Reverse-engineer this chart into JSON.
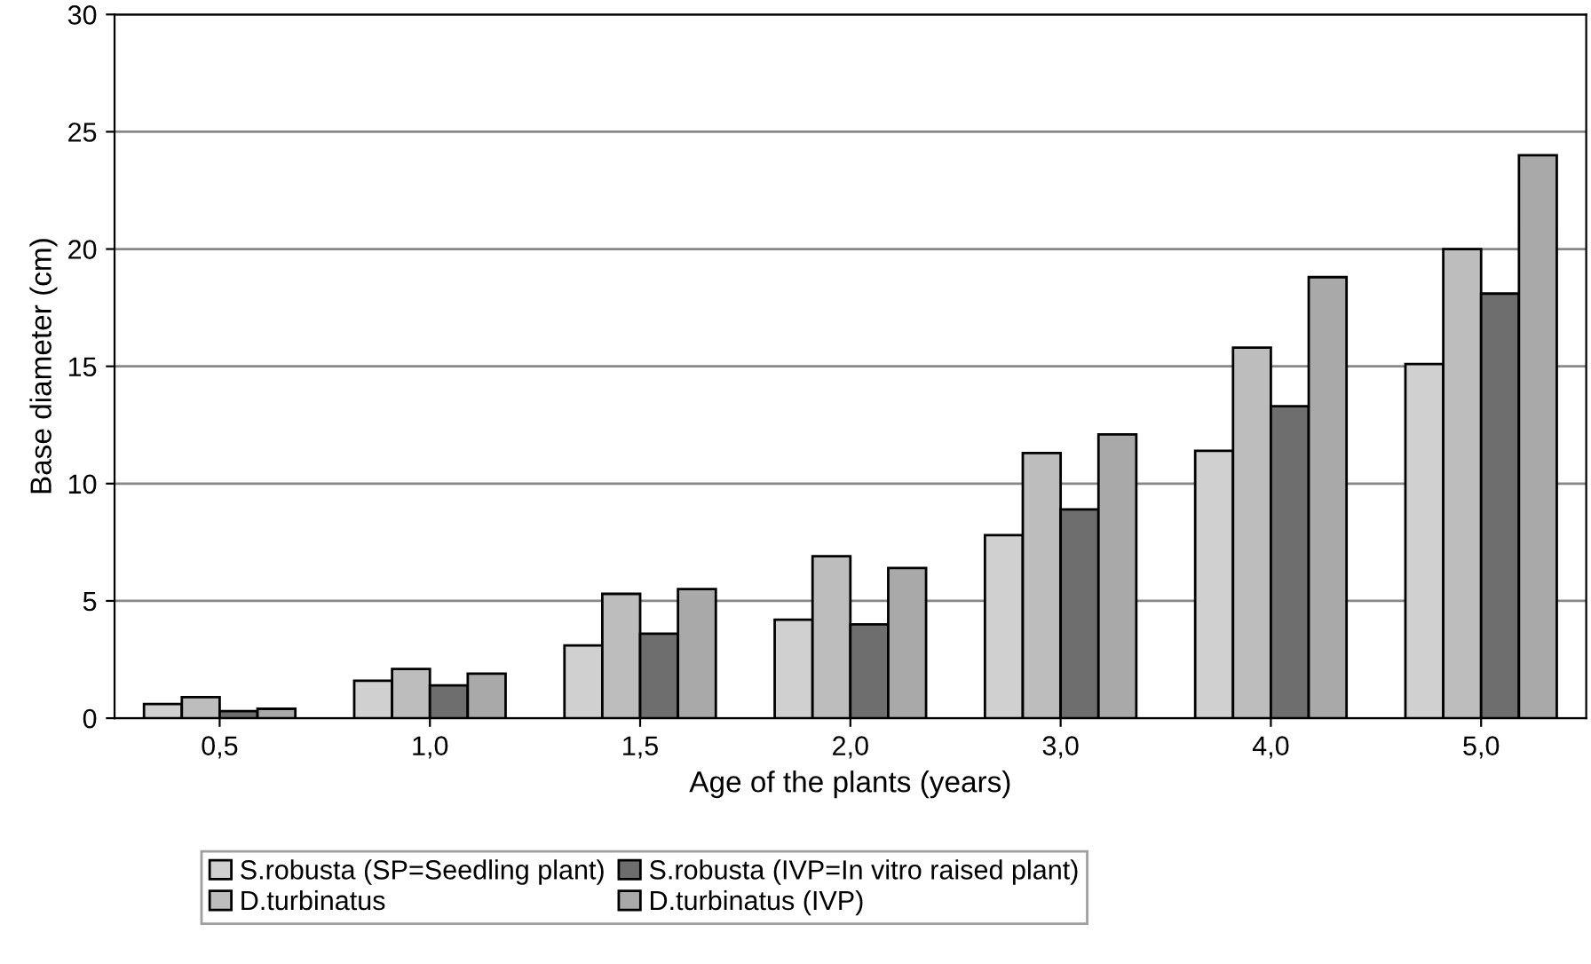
{
  "chart_data": {
    "type": "bar",
    "xlabel": "Age of the plants (years)",
    "ylabel": "Base diameter (cm)",
    "categories": [
      "0,5",
      "1,0",
      "1,5",
      "2,0",
      "3,0",
      "4,0",
      "5,0"
    ],
    "series": [
      {
        "name": "S.robusta (SP=Seedling plant)",
        "color": "#d0d0d0",
        "values": [
          0.6,
          1.6,
          3.1,
          4.2,
          7.8,
          11.4,
          15.1
        ]
      },
      {
        "name": "D.turbinatus",
        "color": "#bdbdbd",
        "values": [
          0.9,
          2.1,
          5.3,
          6.9,
          11.3,
          15.8,
          20.0
        ]
      },
      {
        "name": "S.robusta (IVP=In vitro raised plant)",
        "color": "#6e6e6e",
        "values": [
          0.3,
          1.4,
          3.6,
          4.0,
          8.9,
          13.3,
          18.1
        ]
      },
      {
        "name": "D.turbinatus (IVP)",
        "color": "#a9a9a9",
        "values": [
          0.4,
          1.9,
          5.5,
          6.4,
          12.1,
          18.8,
          24.0
        ]
      }
    ],
    "ylim": [
      0,
      30
    ],
    "yticks": [
      0,
      5,
      10,
      15,
      20,
      25,
      30
    ],
    "grid": "y",
    "legend": "bottom"
  }
}
